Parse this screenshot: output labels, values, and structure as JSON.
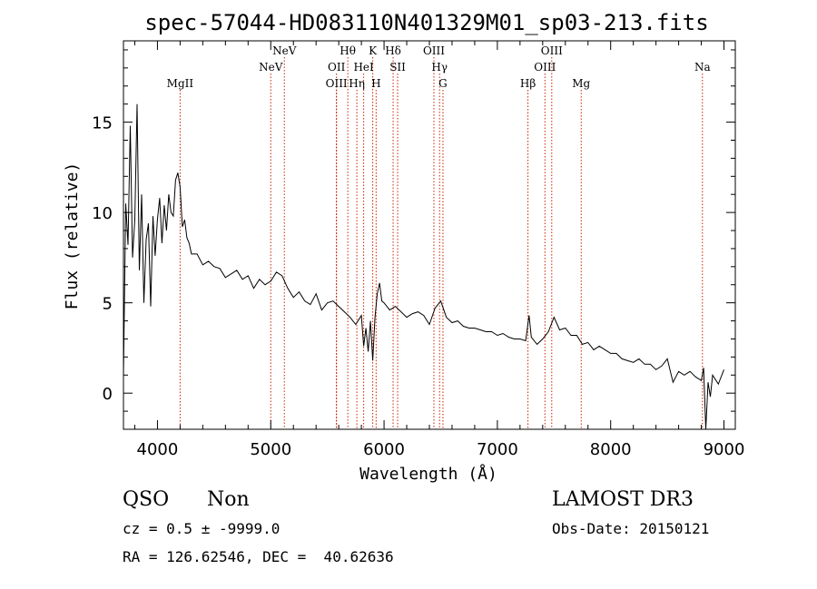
{
  "chart_data": {
    "type": "line",
    "title": "spec-57044-HD083110N401329M01_sp03-213.fits",
    "xlabel": "Wavelength (Å)",
    "ylabel": "Flux (relative)",
    "xlim": [
      3700,
      9100
    ],
    "ylim": [
      -2,
      19.5
    ],
    "xticks": [
      4000,
      5000,
      6000,
      7000,
      8000,
      9000
    ],
    "yticks": [
      0,
      5,
      10,
      15
    ],
    "line_color": "#000000",
    "marker_color": "#cc2200",
    "series": [
      {
        "x": [
          3700,
          3720,
          3740,
          3760,
          3780,
          3800,
          3820,
          3840,
          3860,
          3880,
          3900,
          3920,
          3940,
          3960,
          3980,
          4000,
          4020,
          4040,
          4060,
          4080,
          4100,
          4120,
          4140,
          4160,
          4180,
          4200,
          4220,
          4240,
          4260,
          4280,
          4300,
          4350,
          4400,
          4450,
          4500,
          4550,
          4600,
          4650,
          4700,
          4750,
          4800,
          4850,
          4900,
          4950,
          5000,
          5050,
          5100,
          5150,
          5200,
          5250,
          5300,
          5350,
          5400,
          5450,
          5500,
          5550,
          5600,
          5650,
          5700,
          5750,
          5800,
          5820,
          5840,
          5860,
          5880,
          5900,
          5920,
          5940,
          5960,
          5980,
          6000,
          6050,
          6100,
          6150,
          6200,
          6250,
          6300,
          6350,
          6400,
          6450,
          6500,
          6550,
          6600,
          6650,
          6700,
          6750,
          6800,
          6850,
          6900,
          6950,
          7000,
          7050,
          7100,
          7150,
          7200,
          7250,
          7280,
          7300,
          7350,
          7400,
          7450,
          7500,
          7550,
          7600,
          7650,
          7700,
          7750,
          7800,
          7850,
          7900,
          7950,
          8000,
          8050,
          8100,
          8150,
          8200,
          8250,
          8300,
          8350,
          8400,
          8450,
          8500,
          8550,
          8600,
          8650,
          8700,
          8750,
          8800,
          8820,
          8840,
          8860,
          8880,
          8900,
          8950,
          9000
        ],
        "y": [
          1.0,
          10.5,
          8.2,
          14.8,
          7.5,
          9.6,
          16.0,
          6.8,
          11.0,
          5.0,
          8.5,
          9.4,
          4.8,
          9.8,
          7.6,
          9.6,
          10.8,
          8.3,
          10.4,
          9.0,
          11.0,
          10.0,
          9.8,
          11.8,
          12.2,
          11.4,
          9.2,
          9.6,
          8.6,
          8.3,
          7.7,
          7.7,
          7.1,
          7.3,
          7.0,
          6.9,
          6.4,
          6.6,
          6.8,
          6.3,
          6.5,
          5.8,
          6.3,
          6.0,
          6.2,
          6.7,
          6.5,
          5.8,
          5.3,
          5.6,
          5.1,
          4.9,
          5.5,
          4.6,
          5.0,
          5.1,
          4.8,
          4.5,
          4.2,
          3.8,
          4.3,
          2.6,
          3.6,
          2.3,
          4.0,
          1.8,
          4.2,
          5.5,
          6.1,
          5.1,
          5.0,
          4.6,
          4.8,
          4.5,
          4.2,
          4.4,
          4.5,
          4.3,
          3.8,
          4.7,
          5.1,
          4.2,
          3.9,
          4.0,
          3.7,
          3.6,
          3.6,
          3.5,
          3.4,
          3.4,
          3.2,
          3.3,
          3.1,
          3.0,
          3.0,
          2.9,
          4.3,
          3.1,
          2.7,
          3.0,
          3.4,
          4.2,
          3.5,
          3.6,
          3.2,
          3.2,
          2.7,
          2.8,
          2.4,
          2.6,
          2.4,
          2.2,
          2.2,
          1.9,
          1.8,
          1.7,
          1.9,
          1.6,
          1.6,
          1.3,
          1.5,
          1.9,
          0.6,
          1.2,
          1.0,
          1.2,
          0.9,
          0.7,
          1.4,
          -2.0,
          0.6,
          -0.2,
          1.0,
          0.5,
          1.3
        ]
      }
    ],
    "lines": [
      {
        "label": "MgII",
        "x": 4200,
        "row": 3
      },
      {
        "label": "NeV",
        "x": 5000,
        "row": 2
      },
      {
        "label": "NeV",
        "x": 5120,
        "row": 1
      },
      {
        "label": "OII",
        "x": 5580,
        "row": 2
      },
      {
        "label": "OIII",
        "x": 5580,
        "row": 3
      },
      {
        "label": "Hθ",
        "x": 5680,
        "row": 1
      },
      {
        "label": "Hη",
        "x": 5760,
        "row": 3
      },
      {
        "label": "HeI",
        "x": 5820,
        "row": 2
      },
      {
        "label": "K",
        "x": 5900,
        "row": 1
      },
      {
        "label": "H",
        "x": 5930,
        "row": 3
      },
      {
        "label": "Hδ",
        "x": 6080,
        "row": 1
      },
      {
        "label": "SII",
        "x": 6120,
        "row": 2
      },
      {
        "label": "OIII",
        "x": 6440,
        "row": 1
      },
      {
        "label": "Hγ",
        "x": 6490,
        "row": 2
      },
      {
        "label": "G",
        "x": 6520,
        "row": 3
      },
      {
        "label": "Hβ",
        "x": 7270,
        "row": 3
      },
      {
        "label": "OIII",
        "x": 7420,
        "row": 2
      },
      {
        "label": "OIII",
        "x": 7480,
        "row": 1
      },
      {
        "label": "Mg",
        "x": 7740,
        "row": 3
      },
      {
        "label": "Na",
        "x": 8810,
        "row": 2
      }
    ]
  },
  "info": {
    "class": "QSO",
    "subclass": "Non",
    "survey": "LAMOST DR3",
    "cz": "cz = 0.5 ± -9999.0",
    "obs_date": "Obs-Date: 20150121",
    "coords": "RA = 126.62546, DEC =  40.62636"
  }
}
